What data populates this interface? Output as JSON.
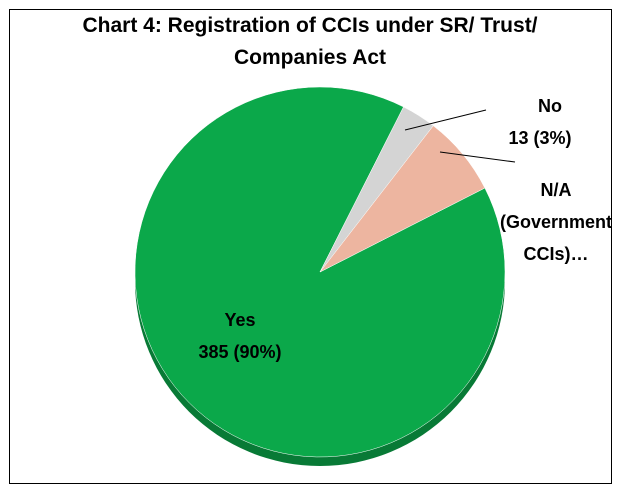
{
  "chart_data": {
    "type": "pie",
    "title": "Chart 4: Registration of CCIs under SR/ Trust/ Companies Act",
    "categories": [
      "Yes",
      "No",
      "N/A (Government CCIs)…"
    ],
    "values": [
      385,
      13,
      30
    ],
    "value_labels": [
      "385 (90%)",
      "13 (3%)",
      null
    ],
    "colors": [
      "#0ba84a",
      "#d4d4d4",
      "#edb5a0"
    ]
  }
}
